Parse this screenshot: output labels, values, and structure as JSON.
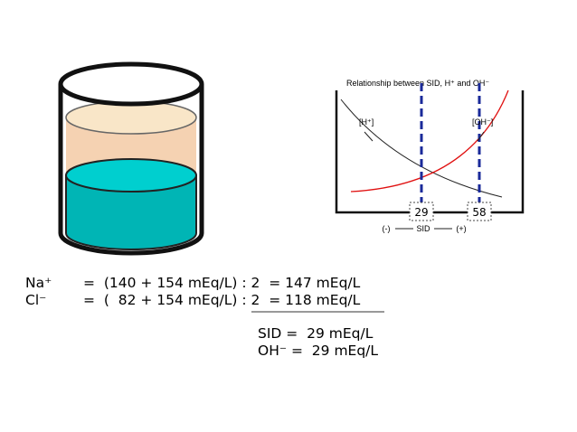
{
  "diagram": {
    "title": "Relationship between SID, H⁺ and OH⁻",
    "labels": [
      "[H⁺]",
      "[OH⁻]"
    ],
    "markers": [
      "29",
      "58"
    ],
    "axis": [
      "(-)",
      "SID",
      "(+)"
    ]
  },
  "equations": {
    "rows": [
      [
        "Na⁺",
        "=  (140 + 154 mEq/L) : 2  = 147 mEq/L"
      ],
      [
        "Cl⁻",
        "=  (  82 + 154 mEq/L) : 2  = 118 mEq/L"
      ]
    ],
    "results": [
      "SID =  29 mEq/L",
      "OH⁻ =  29 mEq/L"
    ]
  }
}
